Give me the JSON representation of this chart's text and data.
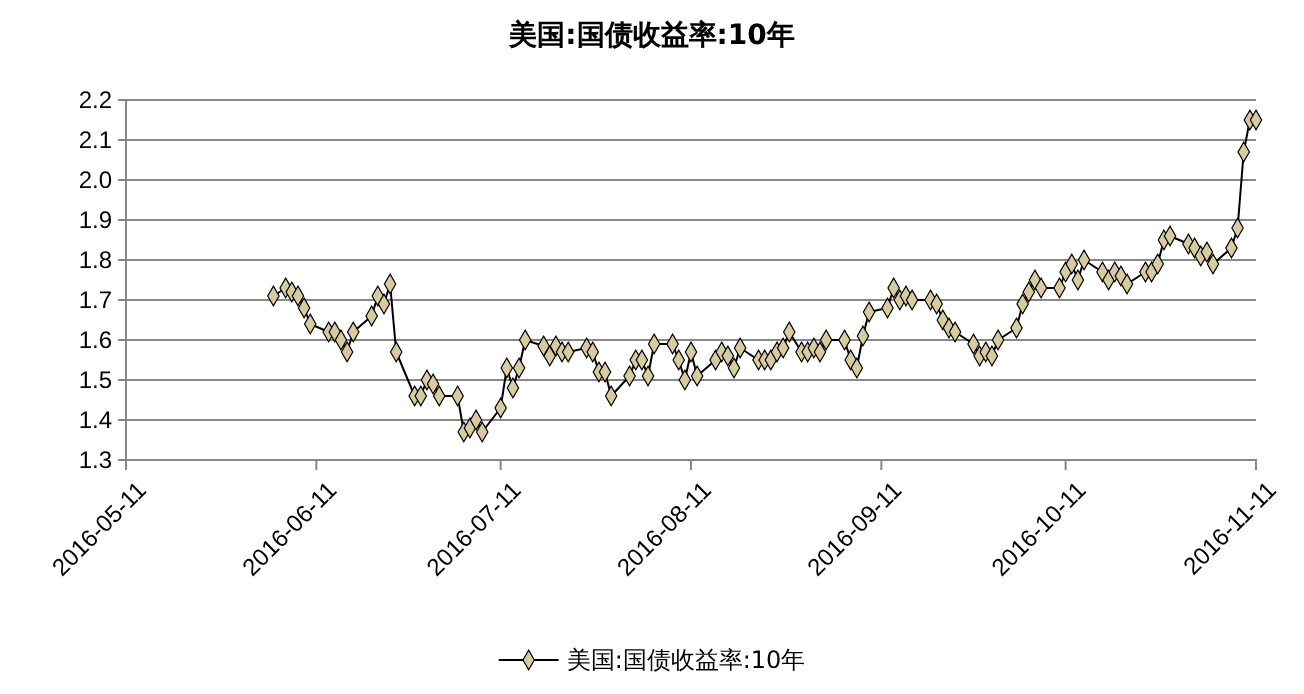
{
  "chart_data": {
    "type": "line",
    "title": "美国:国债收益率:10年",
    "xlim": [
      "2016-05-11",
      "2016-11-11"
    ],
    "xticks": [
      {
        "value": "2016-05-11",
        "label": "2016-05-11"
      },
      {
        "value": "2016-06-11",
        "label": "2016-06-11"
      },
      {
        "value": "2016-07-11",
        "label": "2016-07-11"
      },
      {
        "value": "2016-08-11",
        "label": "2016-08-11"
      },
      {
        "value": "2016-09-11",
        "label": "2016-09-11"
      },
      {
        "value": "2016-10-11",
        "label": "2016-10-11"
      },
      {
        "value": "2016-11-11",
        "label": "2016-11-11"
      }
    ],
    "ylim": [
      1.3,
      2.2
    ],
    "yticks": [
      1.3,
      1.4,
      1.5,
      1.6,
      1.7,
      1.8,
      1.9,
      {
        "value": 2,
        "label": "2.0"
      },
      2.1,
      2.2
    ],
    "grid": "y",
    "legend": "bottom",
    "marker": "diamond",
    "line_style": "solid",
    "series": [
      {
        "name": "美国:国债收益率:10年",
        "color": "#000000",
        "x": [
          "2016-06-04",
          "2016-06-06",
          "2016-06-07",
          "2016-06-08",
          "2016-06-09",
          "2016-06-10",
          "2016-06-13",
          "2016-06-14",
          "2016-06-15",
          "2016-06-16",
          "2016-06-17",
          "2016-06-20",
          "2016-06-21",
          "2016-06-22",
          "2016-06-23",
          "2016-06-24",
          "2016-06-27",
          "2016-06-28",
          "2016-06-29",
          "2016-06-30",
          "2016-07-01",
          "2016-07-04",
          "2016-07-05",
          "2016-07-06",
          "2016-07-07",
          "2016-07-08",
          "2016-07-11",
          "2016-07-12",
          "2016-07-13",
          "2016-07-14",
          "2016-07-15",
          "2016-07-18",
          "2016-07-19",
          "2016-07-20",
          "2016-07-21",
          "2016-07-22",
          "2016-07-25",
          "2016-07-26",
          "2016-07-27",
          "2016-07-28",
          "2016-07-29",
          "2016-08-01",
          "2016-08-02",
          "2016-08-03",
          "2016-08-04",
          "2016-08-05",
          "2016-08-08",
          "2016-08-09",
          "2016-08-10",
          "2016-08-11",
          "2016-08-12",
          "2016-08-15",
          "2016-08-16",
          "2016-08-17",
          "2016-08-18",
          "2016-08-19",
          "2016-08-22",
          "2016-08-23",
          "2016-08-24",
          "2016-08-25",
          "2016-08-26",
          "2016-08-27",
          "2016-08-29",
          "2016-08-30",
          "2016-08-31",
          "2016-09-01",
          "2016-09-02",
          "2016-09-05",
          "2016-09-06",
          "2016-09-07",
          "2016-09-08",
          "2016-09-09",
          "2016-09-12",
          "2016-09-13",
          "2016-09-14",
          "2016-09-15",
          "2016-09-16",
          "2016-09-19",
          "2016-09-20",
          "2016-09-21",
          "2016-09-22",
          "2016-09-23",
          "2016-09-26",
          "2016-09-27",
          "2016-09-28",
          "2016-09-29",
          "2016-09-30",
          "2016-10-03",
          "2016-10-04",
          "2016-10-05",
          "2016-10-06",
          "2016-10-07",
          "2016-10-10",
          "2016-10-11",
          "2016-10-12",
          "2016-10-13",
          "2016-10-14",
          "2016-10-17",
          "2016-10-18",
          "2016-10-19",
          "2016-10-20",
          "2016-10-21",
          "2016-10-24",
          "2016-10-25",
          "2016-10-26",
          "2016-10-27",
          "2016-10-28",
          "2016-10-31",
          "2016-11-01",
          "2016-11-02",
          "2016-11-03",
          "2016-11-04",
          "2016-11-07",
          "2016-11-08",
          "2016-11-09",
          "2016-11-10",
          "2016-11-11"
        ],
        "values": [
          1.71,
          1.73,
          1.72,
          1.71,
          1.68,
          1.64,
          1.62,
          1.62,
          1.6,
          1.57,
          1.62,
          1.66,
          1.71,
          1.69,
          1.74,
          1.57,
          1.46,
          1.46,
          1.5,
          1.49,
          1.46,
          1.46,
          1.37,
          1.38,
          1.4,
          1.37,
          1.43,
          1.53,
          1.48,
          1.53,
          1.6,
          1.585,
          1.56,
          1.585,
          1.57,
          1.57,
          1.58,
          1.57,
          1.52,
          1.52,
          1.46,
          1.51,
          1.55,
          1.55,
          1.51,
          1.59,
          1.59,
          1.55,
          1.5,
          1.57,
          1.51,
          1.55,
          1.57,
          1.56,
          1.53,
          1.58,
          1.55,
          1.55,
          1.55,
          1.57,
          1.58,
          1.62,
          1.57,
          1.57,
          1.58,
          1.57,
          1.6,
          1.6,
          1.55,
          1.53,
          1.61,
          1.67,
          1.68,
          1.73,
          1.7,
          1.71,
          1.7,
          1.7,
          1.69,
          1.65,
          1.63,
          1.62,
          1.59,
          1.56,
          1.57,
          1.56,
          1.6,
          1.63,
          1.69,
          1.72,
          1.75,
          1.73,
          1.73,
          1.77,
          1.79,
          1.75,
          1.8,
          1.77,
          1.75,
          1.77,
          1.76,
          1.74,
          1.77,
          1.77,
          1.79,
          1.85,
          1.86,
          1.84,
          1.83,
          1.81,
          1.82,
          1.79,
          1.83,
          1.88,
          2.07,
          2.15,
          2.15
        ]
      }
    ]
  }
}
